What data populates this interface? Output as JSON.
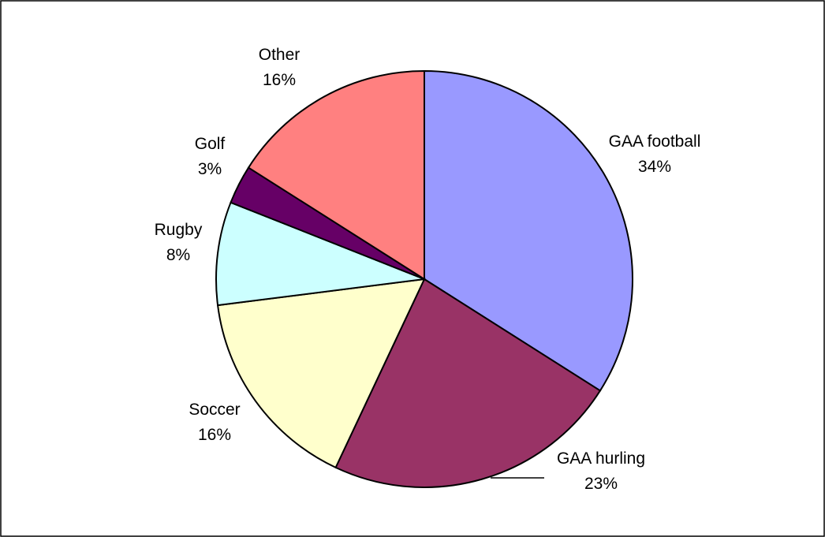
{
  "chart_data": {
    "type": "pie",
    "categories": [
      "GAA football",
      "GAA hurling",
      "Soccer",
      "Rugby",
      "Golf",
      "Other"
    ],
    "values": [
      34,
      23,
      16,
      8,
      3,
      16
    ],
    "value_labels": [
      "34%",
      "23%",
      "16%",
      "8%",
      "3%",
      "16%"
    ],
    "colors": [
      "#9999ff",
      "#993366",
      "#ffffcc",
      "#ccffff",
      "#660066",
      "#ff8080"
    ]
  }
}
